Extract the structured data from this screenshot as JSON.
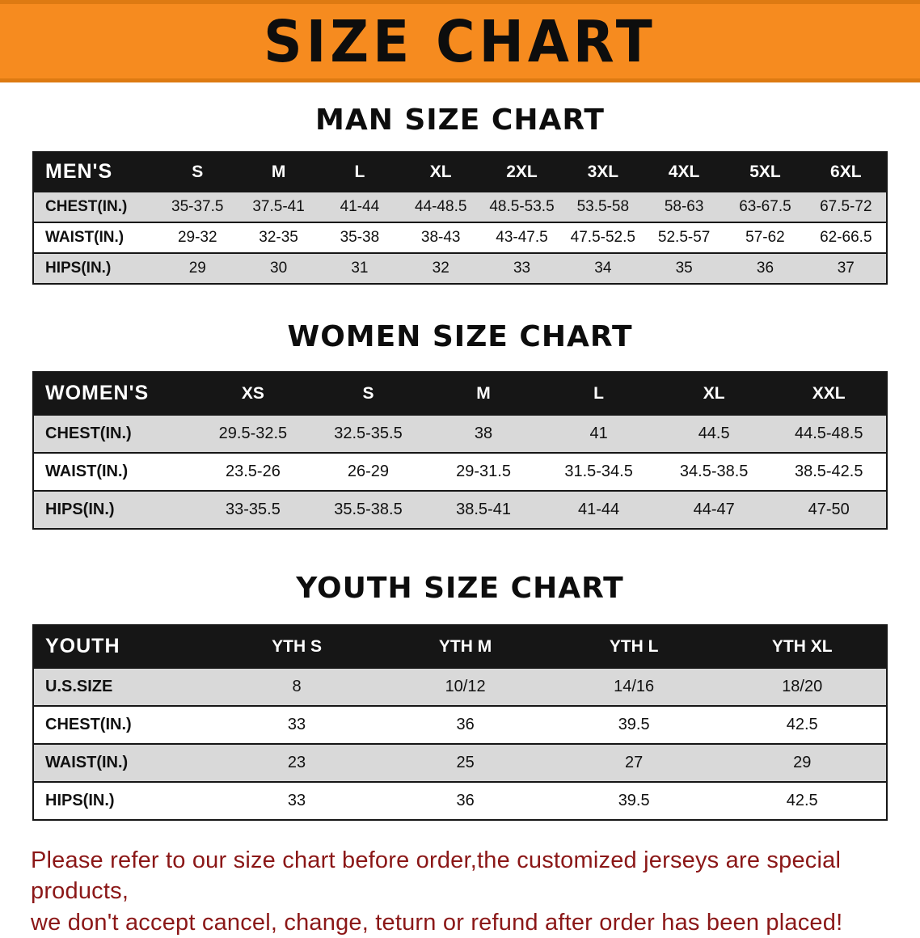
{
  "page": {
    "banner_title": "SIZE CHART",
    "banner_bg": "#F68B1F",
    "footer_color": "#8B1717",
    "footer_line1": "Please refer to our size chart before order,the customized jerseys are special products,",
    "footer_line2": "we don't accept cancel, change, teturn or refund after order has been placed!"
  },
  "tables": {
    "men": {
      "section_title": "MAN SIZE CHART",
      "header": [
        "MEN'S",
        "S",
        "M",
        "L",
        "XL",
        "2XL",
        "3XL",
        "4XL",
        "5XL",
        "6XL"
      ],
      "rows": [
        {
          "cells": [
            "CHEST(IN.)",
            "35-37.5",
            "37.5-41",
            "41-44",
            "44-48.5",
            "48.5-53.5",
            "53.5-58",
            "58-63",
            "63-67.5",
            "67.5-72"
          ]
        },
        {
          "cells": [
            "WAIST(IN.)",
            "29-32",
            "32-35",
            "35-38",
            "38-43",
            "43-47.5",
            "47.5-52.5",
            "52.5-57",
            "57-62",
            "62-66.5"
          ]
        },
        {
          "cells": [
            "HIPS(IN.)",
            "29",
            "30",
            "31",
            "32",
            "33",
            "34",
            "35",
            "36",
            "37"
          ]
        }
      ]
    },
    "women": {
      "section_title": "WOMEN SIZE CHART",
      "header": [
        "WOMEN'S",
        "XS",
        "S",
        "M",
        "L",
        "XL",
        "XXL"
      ],
      "rows": [
        {
          "cells": [
            "CHEST(IN.)",
            "29.5-32.5",
            "32.5-35.5",
            "38",
            "41",
            "44.5",
            "44.5-48.5"
          ]
        },
        {
          "cells": [
            "WAIST(IN.)",
            "23.5-26",
            "26-29",
            "29-31.5",
            "31.5-34.5",
            "34.5-38.5",
            "38.5-42.5"
          ]
        },
        {
          "cells": [
            "HIPS(IN.)",
            "33-35.5",
            "35.5-38.5",
            "38.5-41",
            "41-44",
            "44-47",
            "47-50"
          ]
        }
      ]
    },
    "youth": {
      "section_title": "YOUTH SIZE CHART",
      "header": [
        "YOUTH",
        "YTH S",
        "YTH M",
        "YTH L",
        "YTH XL"
      ],
      "rows": [
        {
          "cells": [
            "U.S.SIZE",
            "8",
            "10/12",
            "14/16",
            "18/20"
          ]
        },
        {
          "cells": [
            "CHEST(IN.)",
            "33",
            "36",
            "39.5",
            "42.5"
          ]
        },
        {
          "cells": [
            "WAIST(IN.)",
            "23",
            "25",
            "27",
            "29"
          ]
        },
        {
          "cells": [
            "HIPS(IN.)",
            "33",
            "36",
            "39.5",
            "42.5"
          ]
        }
      ]
    }
  }
}
